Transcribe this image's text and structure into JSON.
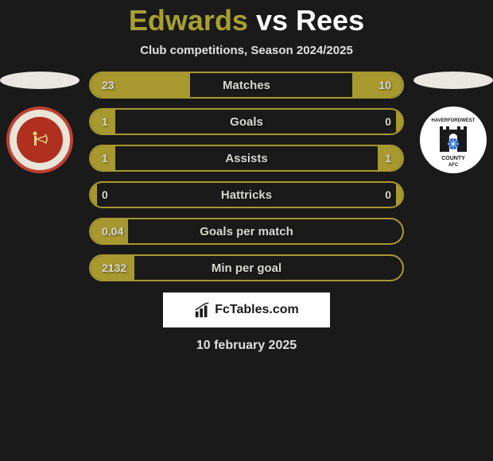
{
  "title": {
    "player1": "Edwards",
    "vs": "vs",
    "player2": "Rees",
    "player1_color": "#a8a030",
    "vs_color": "#ffffff",
    "player2_color": "#ffffff",
    "fontsize": 36
  },
  "subtitle": "Club competitions, Season 2024/2025",
  "subtitle_fontsize": 15,
  "background_color": "#1a1a1a",
  "accent_color": "#a89830",
  "text_color": "#e0e0e0",
  "value_text_color": "#d8d8d0",
  "team_left": {
    "name": "cardiff-met",
    "badge_bg": "#e8e4d8",
    "badge_border": "#c04030",
    "badge_inner_bg": "#b03020"
  },
  "team_right": {
    "name": "haverfordwest-county",
    "badge_bg": "#ffffff",
    "castle_color": "#1a1a1a",
    "ball_color": "#2060c0"
  },
  "stats": [
    {
      "label": "Matches",
      "left_value": "23",
      "right_value": "10",
      "left_fill_pct": 32,
      "right_fill_pct": 16
    },
    {
      "label": "Goals",
      "left_value": "1",
      "right_value": "0",
      "left_fill_pct": 8,
      "right_fill_pct": 2
    },
    {
      "label": "Assists",
      "left_value": "1",
      "right_value": "1",
      "left_fill_pct": 8,
      "right_fill_pct": 8
    },
    {
      "label": "Hattricks",
      "left_value": "0",
      "right_value": "0",
      "left_fill_pct": 2,
      "right_fill_pct": 2
    },
    {
      "label": "Goals per match",
      "left_value": "0.04",
      "right_value": "",
      "left_fill_pct": 12,
      "right_fill_pct": 0
    },
    {
      "label": "Min per goal",
      "left_value": "2132",
      "right_value": "",
      "left_fill_pct": 14,
      "right_fill_pct": 0
    }
  ],
  "stat_row": {
    "height": 34,
    "border_radius": 17,
    "border_width": 2,
    "gap": 12,
    "label_fontsize": 15,
    "value_fontsize": 14
  },
  "logo": {
    "text": "FcTables.com",
    "bg_color": "#ffffff",
    "text_color": "#1a1a1a",
    "fontsize": 16
  },
  "date": "10 february 2025",
  "date_fontsize": 16
}
